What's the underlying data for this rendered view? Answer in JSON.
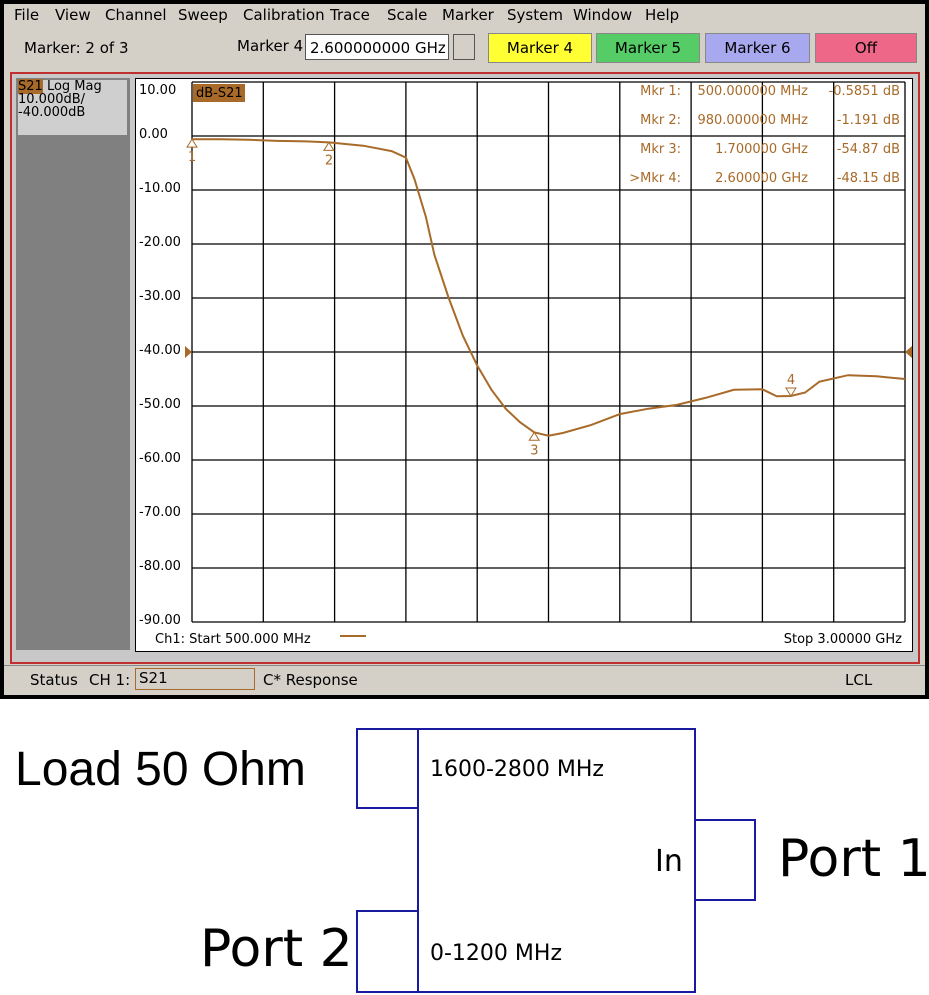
{
  "menu": [
    "File",
    "View",
    "Channel",
    "Sweep",
    "Calibration",
    "Trace",
    "Scale",
    "Marker",
    "System",
    "Window",
    "Help"
  ],
  "toolbar": {
    "marker_count": "Marker: 2 of 3",
    "marker_field_label": "Marker 4",
    "marker_value": "2.600000000 GHz",
    "buttons": [
      "Marker 4",
      "Marker 5",
      "Marker 6",
      "Off"
    ]
  },
  "channel_panel": {
    "trace": "S21",
    "format": "Log Mag",
    "scale": "10.000dB/",
    "reference": "-40.000dB"
  },
  "chart_data": {
    "type": "line",
    "trace_label": "dB-S21",
    "color": "#a86a28",
    "x": [
      500,
      600,
      700,
      800,
      900,
      980,
      1100,
      1200,
      1250,
      1280,
      1320,
      1350,
      1400,
      1450,
      1500,
      1550,
      1600,
      1650,
      1700,
      1750,
      1800,
      1900,
      2000,
      2100,
      2200,
      2300,
      2400,
      2500,
      2550,
      2600,
      2650,
      2700,
      2800,
      2900,
      3000
    ],
    "values": [
      -0.59,
      -0.6,
      -0.7,
      -0.9,
      -1.0,
      -1.19,
      -1.8,
      -2.8,
      -4,
      -8,
      -15,
      -22,
      -30,
      -37,
      -42.5,
      -47,
      -50.5,
      -53,
      -54.87,
      -55.5,
      -55,
      -53.5,
      -51.5,
      -50.5,
      -49.8,
      -48.5,
      -47,
      -46.9,
      -48.2,
      -48.15,
      -47.5,
      -45.5,
      -44.3,
      -44.5,
      -45
    ],
    "xlim": [
      500,
      3000
    ],
    "ylim": [
      -90,
      10
    ],
    "yticks": [
      {
        "value": 10,
        "label": "10.00"
      },
      {
        "value": 0,
        "label": "0.00"
      },
      {
        "value": -10,
        "label": "-10.00"
      },
      {
        "value": -20,
        "label": "-20.00"
      },
      {
        "value": -30,
        "label": "-30.00"
      },
      {
        "value": -40,
        "label": "-40.00"
      },
      {
        "value": -50,
        "label": "-50.00"
      },
      {
        "value": -60,
        "label": "-60.00"
      },
      {
        "value": -70,
        "label": "-70.00"
      },
      {
        "value": -80,
        "label": "-80.00"
      },
      {
        "value": -90,
        "label": "-90.00"
      }
    ],
    "grid": true,
    "reference_level": -40,
    "start_label": "Ch1: Start  500.000 MHz",
    "stop_label": "Stop  3.00000 GHz",
    "markers": [
      {
        "label": "1",
        "x": 500,
        "y": -0.5851,
        "readout": [
          "Mkr  1:",
          "500.000000 MHz",
          "-0.5851 dB"
        ]
      },
      {
        "label": "2",
        "x": 980,
        "y": -1.191,
        "readout": [
          "Mkr  2:",
          "980.000000 MHz",
          "-1.191 dB"
        ]
      },
      {
        "label": "3",
        "x": 1700,
        "y": -54.87,
        "readout": [
          "Mkr  3:",
          "1.700000 GHz",
          "-54.87 dB"
        ]
      },
      {
        "label": "4",
        "x": 2600,
        "y": -48.15,
        "readout": [
          ">Mkr  4:",
          "2.600000 GHz",
          "-48.15 dB"
        ]
      }
    ]
  },
  "status": {
    "label": "Status",
    "channel": "CH 1:",
    "trace": "S21",
    "message": "C* Response",
    "mode": "LCL"
  },
  "diagram": {
    "load": "Load 50 Ohm",
    "high_band": "1600-2800 MHz",
    "input": "In",
    "port1": "Port 1",
    "port2": "Port 2",
    "low_band": "0-1200 MHz"
  }
}
